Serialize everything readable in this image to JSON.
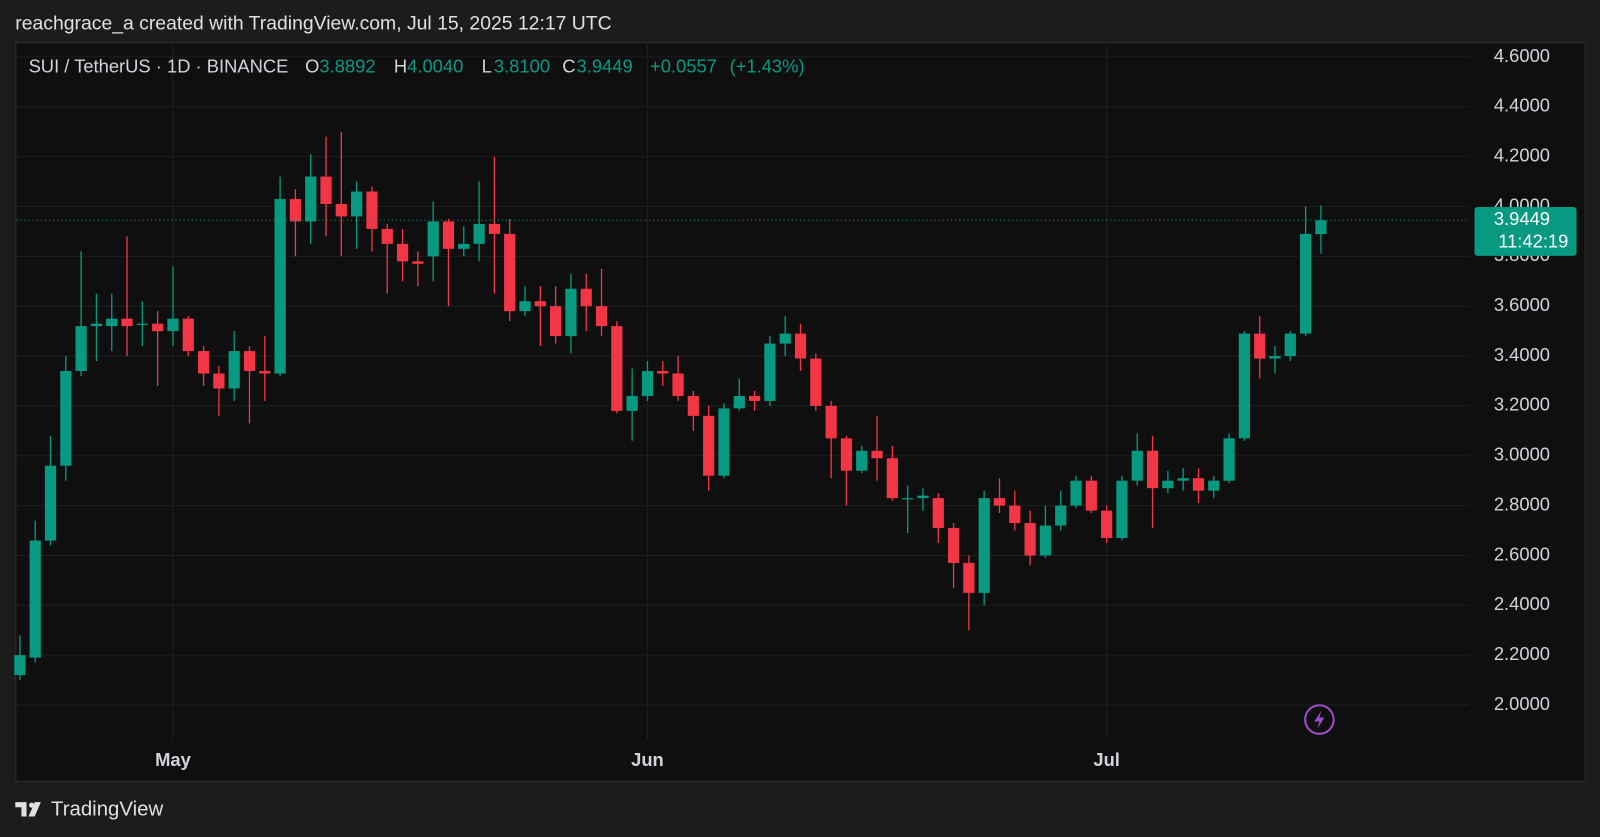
{
  "header": "reachgrace_a created with TradingView.com, Jul 15, 2025 12:17 UTC",
  "footer": "TradingView",
  "chart_data": {
    "type": "candlestick",
    "symbol": "SUI / TetherUS · 1D · BINANCE",
    "legend_keys": {
      "open": "O",
      "high": "H",
      "low": "L",
      "close": "C"
    },
    "last_labels": {
      "open": "3.8892",
      "high": "4.0040",
      "low": "3.8100",
      "close": "3.9449",
      "change": "+0.0557",
      "change_pct": "(+1.43%)"
    },
    "countdown": "11:42:19",
    "up_color": "#089981",
    "down_color": "#f23645",
    "grid": true,
    "categories": [
      null,
      null,
      null,
      null,
      null,
      null,
      null,
      null,
      null,
      null,
      "May",
      null,
      null,
      null,
      null,
      null,
      null,
      null,
      null,
      null,
      null,
      null,
      null,
      null,
      null,
      null,
      null,
      null,
      null,
      null,
      null,
      null,
      null,
      null,
      null,
      null,
      null,
      null,
      null,
      null,
      null,
      "Jun",
      null,
      null,
      null,
      null,
      null,
      null,
      null,
      null,
      null,
      null,
      null,
      null,
      null,
      null,
      null,
      null,
      null,
      null,
      null,
      null,
      null,
      null,
      null,
      null,
      null,
      null,
      null,
      null,
      null,
      "Jul",
      null,
      null,
      null,
      null,
      null,
      null,
      null,
      null,
      null,
      null,
      null,
      null,
      null,
      null
    ],
    "open": [
      2.12,
      2.19,
      2.66,
      2.96,
      3.34,
      3.52,
      3.52,
      3.55,
      3.53,
      3.53,
      3.5,
      3.55,
      3.42,
      3.33,
      3.27,
      3.42,
      3.34,
      3.33,
      4.03,
      3.94,
      4.12,
      4.01,
      3.96,
      4.06,
      3.91,
      3.85,
      3.78,
      3.8,
      3.94,
      3.83,
      3.85,
      3.93,
      3.89,
      3.58,
      3.62,
      3.6,
      3.48,
      3.67,
      3.6,
      3.52,
      3.18,
      3.24,
      3.34,
      3.33,
      3.24,
      3.16,
      2.92,
      3.19,
      3.24,
      3.22,
      3.45,
      3.49,
      3.39,
      3.2,
      3.07,
      2.94,
      3.02,
      2.99,
      2.83,
      2.83,
      2.83,
      2.71,
      2.57,
      2.45,
      2.83,
      2.8,
      2.73,
      2.6,
      2.72,
      2.8,
      2.9,
      2.78,
      2.67,
      2.9,
      3.02,
      2.87,
      2.9,
      2.91,
      2.86,
      2.9,
      3.07,
      3.49,
      3.39,
      3.4,
      3.49,
      3.8892
    ],
    "high": [
      2.28,
      2.74,
      3.08,
      3.4,
      3.82,
      3.65,
      3.65,
      3.88,
      3.62,
      3.58,
      3.76,
      3.56,
      3.44,
      3.36,
      3.5,
      3.44,
      3.48,
      4.12,
      4.07,
      4.21,
      4.28,
      4.3,
      4.1,
      4.08,
      3.93,
      3.91,
      3.82,
      4.02,
      3.95,
      3.92,
      4.1,
      4.2,
      3.95,
      3.68,
      3.68,
      3.68,
      3.73,
      3.73,
      3.75,
      3.54,
      3.35,
      3.38,
      3.38,
      3.4,
      3.26,
      3.2,
      3.21,
      3.31,
      3.26,
      3.48,
      3.56,
      3.53,
      3.41,
      3.22,
      3.08,
      3.04,
      3.16,
      3.04,
      2.88,
      2.87,
      2.85,
      2.73,
      2.6,
      2.86,
      2.91,
      2.86,
      2.78,
      2.8,
      2.86,
      2.92,
      2.92,
      2.8,
      2.92,
      3.09,
      3.08,
      2.94,
      2.95,
      2.95,
      2.92,
      3.09,
      3.5,
      3.56,
      3.44,
      3.5,
      4.0,
      4.004
    ],
    "low": [
      2.1,
      2.17,
      2.64,
      2.9,
      3.32,
      3.38,
      3.42,
      3.4,
      3.44,
      3.28,
      3.44,
      3.4,
      3.28,
      3.16,
      3.22,
      3.13,
      3.22,
      3.32,
      3.8,
      3.85,
      3.88,
      3.8,
      3.83,
      3.82,
      3.65,
      3.7,
      3.68,
      3.7,
      3.6,
      3.8,
      3.78,
      3.65,
      3.54,
      3.56,
      3.44,
      3.45,
      3.41,
      3.5,
      3.48,
      3.17,
      3.06,
      3.22,
      3.28,
      3.22,
      3.1,
      2.86,
      2.91,
      3.18,
      3.18,
      3.2,
      3.4,
      3.34,
      3.18,
      2.91,
      2.8,
      2.93,
      2.9,
      2.82,
      2.69,
      2.78,
      2.65,
      2.47,
      2.3,
      2.4,
      2.77,
      2.7,
      2.56,
      2.59,
      2.7,
      2.79,
      2.77,
      2.65,
      2.66,
      2.88,
      2.71,
      2.85,
      2.86,
      2.81,
      2.83,
      2.89,
      3.06,
      3.31,
      3.33,
      3.38,
      3.48,
      3.81
    ],
    "close": [
      2.2,
      2.66,
      2.96,
      3.34,
      3.52,
      3.53,
      3.55,
      3.52,
      3.53,
      3.5,
      3.55,
      3.42,
      3.33,
      3.27,
      3.42,
      3.34,
      3.33,
      4.03,
      3.94,
      4.12,
      4.01,
      3.96,
      4.06,
      3.91,
      3.85,
      3.78,
      3.77,
      3.94,
      3.83,
      3.85,
      3.93,
      3.89,
      3.58,
      3.62,
      3.6,
      3.48,
      3.67,
      3.6,
      3.52,
      3.18,
      3.24,
      3.34,
      3.33,
      3.24,
      3.16,
      2.92,
      3.19,
      3.24,
      3.22,
      3.45,
      3.49,
      3.39,
      3.2,
      3.07,
      2.94,
      3.02,
      2.99,
      2.83,
      2.83,
      2.84,
      2.71,
      2.57,
      2.45,
      2.83,
      2.8,
      2.73,
      2.6,
      2.72,
      2.8,
      2.9,
      2.78,
      2.67,
      2.9,
      3.02,
      2.87,
      2.9,
      2.91,
      2.86,
      2.9,
      3.07,
      3.49,
      3.39,
      3.4,
      3.49,
      3.89,
      3.9449
    ],
    "ylim": [
      1.86,
      4.66
    ],
    "yticks": [
      {
        "value": 2.0,
        "label": "2.0000"
      },
      {
        "value": 2.2,
        "label": "2.2000"
      },
      {
        "value": 2.4,
        "label": "2.4000"
      },
      {
        "value": 2.6,
        "label": "2.6000"
      },
      {
        "value": 2.8,
        "label": "2.8000"
      },
      {
        "value": 3.0,
        "label": "3.0000"
      },
      {
        "value": 3.2,
        "label": "3.2000"
      },
      {
        "value": 3.4,
        "label": "3.4000"
      },
      {
        "value": 3.6,
        "label": "3.6000"
      },
      {
        "value": 3.8,
        "label": "3.8000"
      },
      {
        "value": 4.0,
        "label": "4.0000"
      },
      {
        "value": 4.2,
        "label": "4.2000"
      },
      {
        "value": 4.4,
        "label": "4.4000"
      },
      {
        "value": 4.6,
        "label": "4.6000"
      }
    ]
  }
}
